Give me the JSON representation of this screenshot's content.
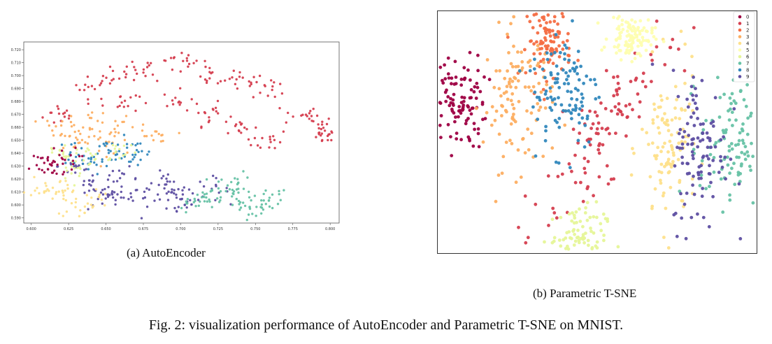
{
  "figure": {
    "caption": "Fig. 2: visualization performance of AutoEncoder and Parametric T-SNE on MNIST.",
    "subcaption_a": "(a)  AutoEncoder",
    "subcaption_b": "(b)  Parametric T-SNE"
  },
  "colors": {
    "0": "#9e0142",
    "1": "#d53e4f",
    "2": "#f46d43",
    "3": "#fdae61",
    "4": "#fee08b",
    "5": "#fefeb0",
    "6": "#e6f598",
    "7": "#66c2a5",
    "8": "#3288bd",
    "9": "#5e4fa2"
  },
  "chart_data": [
    {
      "type": "scatter",
      "title": "",
      "xlabel": "",
      "ylabel": "",
      "xlim": [
        0.595,
        0.806
      ],
      "ylim": [
        0.586,
        0.726
      ],
      "xticks": [
        0.6,
        0.625,
        0.65,
        0.675,
        0.7,
        0.725,
        0.75,
        0.775,
        0.8
      ],
      "xtick_labels": [
        "0.600",
        "0.625",
        "0.650",
        "0.675",
        "0.700",
        "0.725",
        "0.750",
        "0.775",
        "0.800"
      ],
      "yticks": [
        0.59,
        0.6,
        0.61,
        0.62,
        0.63,
        0.64,
        0.65,
        0.66,
        0.67,
        0.68,
        0.69,
        0.7,
        0.71,
        0.72
      ],
      "ytick_labels": [
        "0.590",
        "0.600",
        "0.610",
        "0.620",
        "0.630",
        "0.640",
        "0.650",
        "0.660",
        "0.670",
        "0.680",
        "0.690",
        "0.700",
        "0.710",
        "0.720"
      ],
      "grid": false,
      "legend": "none",
      "clusters": [
        {
          "label": "1",
          "points": [
            [
              0.62,
              0.67
            ],
            [
              0.64,
              0.69
            ],
            [
              0.66,
              0.7
            ],
            [
              0.68,
              0.705
            ],
            [
              0.7,
              0.71
            ],
            [
              0.72,
              0.7
            ],
            [
              0.74,
              0.695
            ],
            [
              0.76,
              0.69
            ],
            [
              0.78,
              0.67
            ],
            [
              0.79,
              0.66
            ],
            [
              0.8,
              0.655
            ],
            [
              0.76,
              0.65
            ],
            [
              0.74,
              0.66
            ],
            [
              0.72,
              0.67
            ],
            [
              0.7,
              0.68
            ],
            [
              0.66,
              0.68
            ]
          ]
        },
        {
          "label": "9",
          "points": [
            [
              0.64,
              0.615
            ],
            [
              0.66,
              0.61
            ],
            [
              0.68,
              0.605
            ],
            [
              0.7,
              0.61
            ],
            [
              0.66,
              0.62
            ],
            [
              0.69,
              0.618
            ],
            [
              0.72,
              0.612
            ],
            [
              0.65,
              0.605
            ],
            [
              0.7,
              0.6
            ],
            [
              0.63,
              0.63
            ]
          ]
        },
        {
          "label": "7",
          "points": [
            [
              0.72,
              0.605
            ],
            [
              0.74,
              0.6
            ],
            [
              0.75,
              0.595
            ],
            [
              0.73,
              0.61
            ],
            [
              0.76,
              0.605
            ],
            [
              0.74,
              0.615
            ],
            [
              0.71,
              0.602
            ]
          ]
        },
        {
          "label": "3",
          "points": [
            [
              0.62,
              0.66
            ],
            [
              0.64,
              0.665
            ],
            [
              0.66,
              0.658
            ],
            [
              0.63,
              0.65
            ],
            [
              0.65,
              0.648
            ],
            [
              0.68,
              0.652
            ]
          ]
        },
        {
          "label": "8",
          "points": [
            [
              0.63,
              0.64
            ],
            [
              0.65,
              0.645
            ],
            [
              0.67,
              0.64
            ],
            [
              0.66,
              0.635
            ],
            [
              0.64,
              0.632
            ]
          ]
        },
        {
          "label": "6",
          "points": [
            [
              0.62,
              0.64
            ],
            [
              0.64,
              0.638
            ],
            [
              0.66,
              0.642
            ],
            [
              0.63,
              0.628
            ]
          ]
        },
        {
          "label": "4",
          "points": [
            [
              0.62,
              0.61
            ],
            [
              0.64,
              0.604
            ],
            [
              0.61,
              0.615
            ],
            [
              0.63,
              0.6
            ]
          ]
        },
        {
          "label": "0",
          "points": [
            [
              0.605,
              0.632
            ],
            [
              0.615,
              0.628
            ],
            [
              0.62,
              0.636
            ]
          ]
        }
      ]
    },
    {
      "type": "scatter",
      "title": "",
      "xlabel": "",
      "ylabel": "",
      "grid": false,
      "legend": "top-right",
      "legend_entries": [
        "0",
        "1",
        "2",
        "3",
        "4",
        "5",
        "6",
        "7",
        "8",
        "9"
      ],
      "clusters": [
        {
          "label": "0",
          "center": [
            -4.4,
            0.9
          ]
        },
        {
          "label": "1",
          "center": [
            0.2,
            0.0
          ]
        },
        {
          "label": "2",
          "center": [
            -1.5,
            2.9
          ]
        },
        {
          "label": "3",
          "center": [
            -2.5,
            1.0
          ]
        },
        {
          "label": "4",
          "center": [
            2.3,
            -0.6
          ]
        },
        {
          "label": "5",
          "center": [
            1.1,
            3.0
          ]
        },
        {
          "label": "6",
          "center": [
            -0.6,
            -3.5
          ]
        },
        {
          "label": "7",
          "center": [
            4.3,
            -0.4
          ]
        },
        {
          "label": "8",
          "center": [
            -1.0,
            1.4
          ]
        },
        {
          "label": "9",
          "center": [
            3.3,
            -0.6
          ]
        }
      ]
    }
  ]
}
